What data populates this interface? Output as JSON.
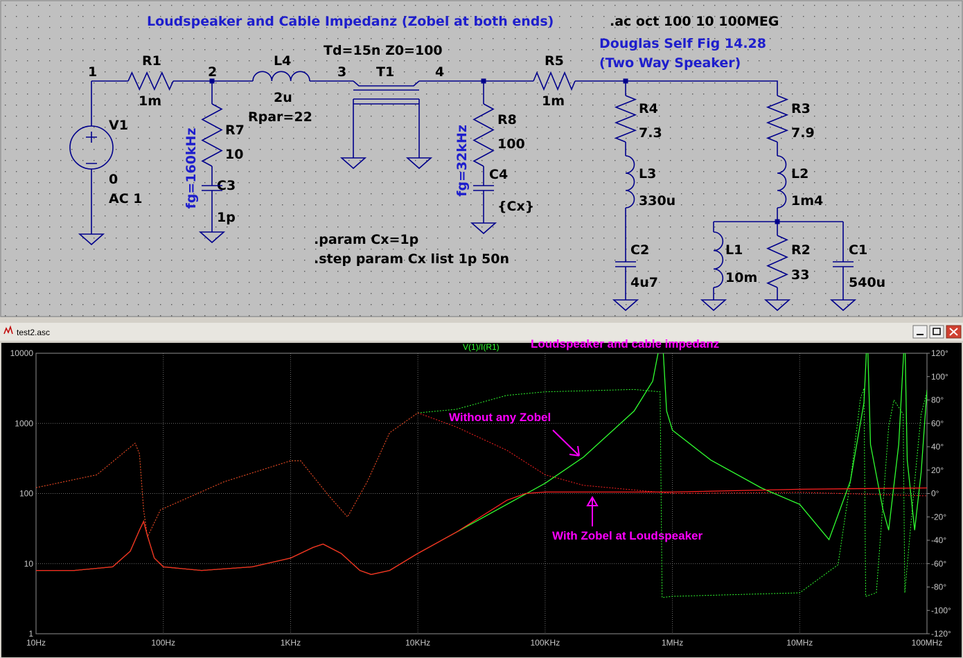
{
  "schematic": {
    "title": "Loudspeaker and Cable Impedanz (Zobel at both ends)",
    "directive_ac": ".ac oct 100 10 100MEG",
    "reference": [
      "Douglas Self Fig 14.28",
      "(Two Way Speaker)"
    ],
    "tline_params": "Td=15n Z0=100",
    "nodes": [
      "1",
      "2",
      "3",
      "4"
    ],
    "components": [
      {
        "name": "R1",
        "value": "1m"
      },
      {
        "name": "L4",
        "value": "2u",
        "extra": "Rpar=22"
      },
      {
        "name": "T1"
      },
      {
        "name": "R5",
        "value": "1m"
      },
      {
        "name": "V1",
        "value": "0",
        "extra": "AC 1"
      },
      {
        "name": "R7",
        "value": "10"
      },
      {
        "name": "C3",
        "value": "1p"
      },
      {
        "name": "R8",
        "value": "100"
      },
      {
        "name": "C4",
        "value": "{Cx}"
      },
      {
        "name": "R4",
        "value": "7.3"
      },
      {
        "name": "L3",
        "value": "330u"
      },
      {
        "name": "C2",
        "value": "4u7"
      },
      {
        "name": "R3",
        "value": "7.9"
      },
      {
        "name": "L2",
        "value": "1m4"
      },
      {
        "name": "L1",
        "value": "10m"
      },
      {
        "name": "R2",
        "value": "33"
      },
      {
        "name": "C1",
        "value": "540u"
      }
    ],
    "filter_notes": [
      "fg=160kHz",
      "fg=32kHz"
    ],
    "directives": [
      ".param Cx=1p",
      ".step param Cx list 1p 50n"
    ]
  },
  "window": {
    "title": "test2.asc"
  },
  "chart_data": {
    "type": "line",
    "title": "Loudspeaker and cable impedanz",
    "trace_label": "V(1)/I(R1)",
    "annotations": [
      "Without any Zobel",
      "With Zobel at Loudspeaker"
    ],
    "xscale": "log",
    "yscale": "log",
    "grid": true,
    "xlim": [
      10,
      100000000
    ],
    "xticks": [
      {
        "value": 10,
        "label": "10Hz"
      },
      {
        "value": 100,
        "label": "100Hz"
      },
      {
        "value": 1000,
        "label": "1KHz"
      },
      {
        "value": 10000,
        "label": "10KHz"
      },
      {
        "value": 100000,
        "label": "100KHz"
      },
      {
        "value": 1000000,
        "label": "1MHz"
      },
      {
        "value": 10000000,
        "label": "10MHz"
      },
      {
        "value": 100000000,
        "label": "100MHz"
      }
    ],
    "ylim": [
      1,
      10000
    ],
    "yticks": [
      1,
      10,
      100,
      1000,
      10000
    ],
    "y2lim": [
      -120,
      120
    ],
    "y2ticks": [
      {
        "value": 120,
        "label": "120°"
      },
      {
        "value": 100,
        "label": "100°"
      },
      {
        "value": 80,
        "label": "80°"
      },
      {
        "value": 60,
        "label": "60°"
      },
      {
        "value": 40,
        "label": "40°"
      },
      {
        "value": 20,
        "label": "20°"
      },
      {
        "value": 0,
        "label": "0°"
      },
      {
        "value": -20,
        "label": "-20°"
      },
      {
        "value": -40,
        "label": "-40°"
      },
      {
        "value": -60,
        "label": "-60°"
      },
      {
        "value": -80,
        "label": "-80°"
      },
      {
        "value": -100,
        "label": "-100°"
      },
      {
        "value": -120,
        "label": "-120°"
      }
    ],
    "series": [
      {
        "color": "#30ff30",
        "style": "dashed",
        "axis": "y2",
        "x": [
          10,
          30,
          60,
          65,
          70,
          75,
          80,
          95,
          300,
          1000,
          1200,
          2000,
          2800,
          4000,
          6000,
          10000,
          20000,
          50000,
          100000,
          500000,
          800000,
          830000,
          1000000,
          10000000,
          20000000,
          25000000,
          30000000,
          32000000,
          33000000,
          40000000,
          50000000,
          55000000,
          65000000,
          67000000,
          80000000,
          90000000,
          100000000
        ],
        "values": [
          5,
          16,
          43,
          34,
          -14,
          -37,
          -31,
          -14,
          10,
          28,
          28,
          -2,
          -20,
          10,
          52,
          69,
          72,
          84,
          87,
          89,
          87,
          -89,
          -88,
          -85,
          -61,
          10,
          81,
          90,
          -88,
          -85,
          57,
          80,
          68,
          -85,
          10,
          68,
          87
        ]
      },
      {
        "color": "#ff2020",
        "style": "dashed",
        "axis": "y2",
        "x": [
          10,
          30,
          60,
          65,
          70,
          75,
          80,
          95,
          300,
          1000,
          1200,
          2000,
          2800,
          4000,
          6000,
          10000,
          20000,
          50000,
          100000,
          200000,
          1000000,
          10000000,
          100000000
        ],
        "values": [
          5,
          16,
          43,
          34,
          -14,
          -37,
          -31,
          -14,
          10,
          28,
          28,
          -2,
          -20,
          10,
          52,
          69,
          57,
          37,
          16,
          7,
          0,
          1,
          -2
        ]
      },
      {
        "color": "#30ff30",
        "style": "solid",
        "x": [
          10,
          20,
          40,
          55,
          65,
          70,
          75,
          85,
          100,
          200,
          500,
          1000,
          1500,
          1800,
          2500,
          3500,
          4300,
          6000,
          10000,
          20000,
          50000,
          100000,
          200000,
          500000,
          700000,
          830000,
          900000,
          1000000,
          2000000,
          5000000,
          10000000,
          17000000,
          25000000,
          32000000,
          34000000,
          36000000,
          45000000,
          50000000,
          60000000,
          67000000,
          70000000,
          80000000,
          90000000,
          100000000
        ],
        "values": [
          8,
          8,
          9,
          15,
          30,
          40,
          25,
          12,
          9,
          8,
          9,
          12,
          17,
          19,
          14,
          8,
          7,
          8,
          14,
          28,
          70,
          140,
          330,
          1500,
          4000,
          20000,
          1500,
          800,
          300,
          120,
          70,
          22,
          150,
          2000,
          20000,
          500,
          60,
          30,
          500,
          20000,
          300,
          30,
          200,
          3000
        ]
      },
      {
        "color": "#ff2020",
        "style": "solid",
        "x": [
          10,
          20,
          40,
          55,
          65,
          70,
          75,
          85,
          100,
          200,
          500,
          1000,
          1500,
          1800,
          2500,
          3500,
          4300,
          6000,
          10000,
          20000,
          50000,
          70000,
          100000,
          1000000,
          10000000,
          100000000
        ],
        "values": [
          8,
          8,
          9,
          15,
          30,
          40,
          25,
          12,
          9,
          8,
          9,
          12,
          17,
          19,
          14,
          8,
          7,
          8,
          14,
          28,
          80,
          100,
          105,
          105,
          115,
          120
        ]
      }
    ]
  }
}
